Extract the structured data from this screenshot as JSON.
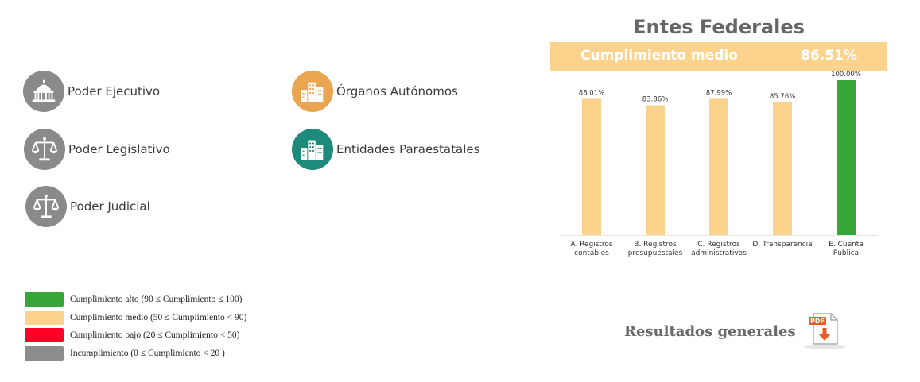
{
  "categories_nav": [
    {
      "label": "Poder Ejecutivo",
      "color": "#8a8a8a",
      "icon": "capitol-building-icon"
    },
    {
      "label": "Poder Legislativo",
      "color": "#8a8a8a",
      "icon": "scales-icon"
    },
    {
      "label": "Poder Judicial",
      "color": "#8a8a8a",
      "icon": "scales-icon"
    },
    {
      "label": "Órganos Autónomos",
      "color": "#e9a54f",
      "icon": "city-buildings-icon"
    },
    {
      "label": "Entidades Paraestatales",
      "color": "#1e8a7c",
      "icon": "city-buildings-icon"
    }
  ],
  "legend": [
    {
      "label": "Cumplimiento alto (90 ≤ Cumplimiento ≤ 100)",
      "color": "#36a638"
    },
    {
      "label": "Cumplimiento medio (50 ≤ Cumplimiento  < 90)",
      "color": "#fcd38d"
    },
    {
      "label": "Cumplimiento bajo (20 ≤ Cumplimiento < 50)",
      "color": "#ff0026"
    },
    {
      "label": "Incumplimiento (0 ≤ Cumplimiento < 20 )",
      "color": "#8c8c8c"
    }
  ],
  "summary": {
    "label": "Cumplimiento medio",
    "value": "86.51%"
  },
  "chart_data": {
    "type": "bar",
    "title": "Entes Federales",
    "categories": [
      [
        "A. Registros",
        "contables"
      ],
      [
        "B. Registros",
        "presupuestales"
      ],
      [
        "C. Registros",
        "administrativos"
      ],
      [
        "D. Transparencia"
      ],
      [
        "E. Cuenta",
        "Pública"
      ]
    ],
    "values": [
      88.01,
      83.86,
      87.99,
      85.76,
      100.0
    ],
    "value_labels": [
      "88.01%",
      "83.86%",
      "87.99%",
      "85.76%",
      "100.00%"
    ],
    "colors": [
      "#fcd38d",
      "#fcd38d",
      "#fcd38d",
      "#fcd38d",
      "#36a638"
    ],
    "ylim": [
      0,
      100
    ],
    "grid": false
  },
  "results": {
    "label": "Resultados generales",
    "pdf_badge": "PDF",
    "icon": "pdf-download-icon"
  }
}
